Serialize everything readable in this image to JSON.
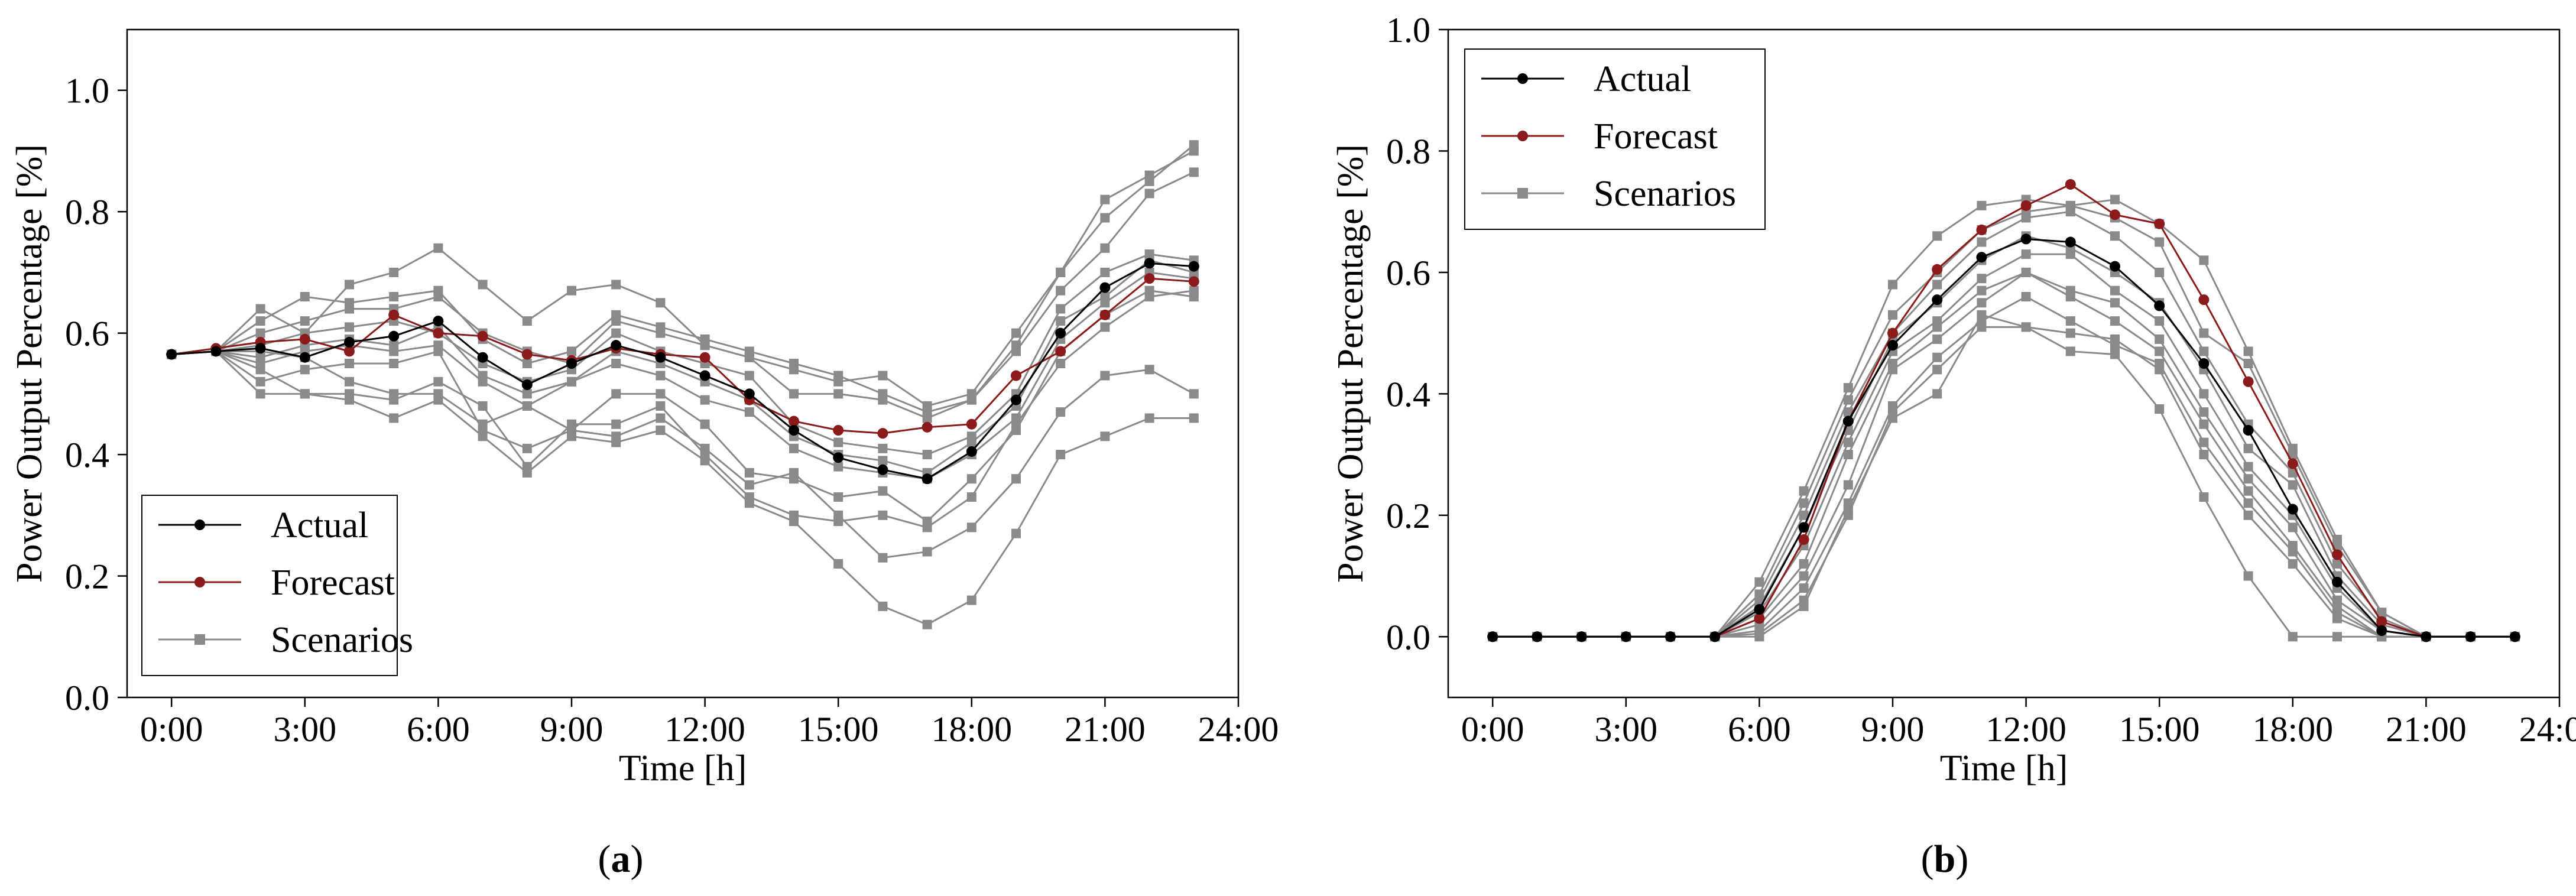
{
  "colors": {
    "actual": "#000000",
    "forecast": "#8b1a1a",
    "scenario": "#8a8a8a"
  },
  "chart_data": [
    {
      "id": "a",
      "type": "line",
      "caption": "(a)",
      "caption_letter": "a",
      "xlabel": "Time [h]",
      "ylabel": "Power Output Percentage [%]",
      "xlim": [
        -1,
        24
      ],
      "ylim": [
        0,
        1.1
      ],
      "xticks": [
        0,
        3,
        6,
        9,
        12,
        15,
        18,
        21,
        24
      ],
      "xtick_labels": [
        "0:00",
        "3:00",
        "6:00",
        "9:00",
        "12:00",
        "15:00",
        "18:00",
        "21:00",
        "24:00"
      ],
      "yticks": [
        0,
        0.2,
        0.4,
        0.6,
        0.8,
        1.0
      ],
      "ytick_labels": [
        "0.0",
        "0.2",
        "0.4",
        "0.6",
        "0.8",
        "1.0"
      ],
      "legend_position": "lower-left",
      "legend": [
        "Actual",
        "Forecast",
        "Scenarios"
      ],
      "x": [
        0,
        1,
        2,
        3,
        4,
        5,
        6,
        7,
        8,
        9,
        10,
        11,
        12,
        13,
        14,
        15,
        16,
        17,
        18,
        19,
        20,
        21,
        22,
        23
      ],
      "actual": [
        0.565,
        0.57,
        0.575,
        0.56,
        0.585,
        0.595,
        0.62,
        0.56,
        0.515,
        0.55,
        0.58,
        0.56,
        0.53,
        0.5,
        0.44,
        0.395,
        0.375,
        0.36,
        0.405,
        0.49,
        0.6,
        0.675,
        0.715,
        0.71
      ],
      "forecast": [
        0.565,
        0.575,
        0.585,
        0.59,
        0.57,
        0.63,
        0.6,
        0.595,
        0.565,
        0.555,
        0.575,
        0.565,
        0.56,
        0.49,
        0.455,
        0.44,
        0.435,
        0.445,
        0.45,
        0.53,
        0.57,
        0.63,
        0.69,
        0.685
      ],
      "scenarios": [
        [
          0.565,
          0.57,
          0.64,
          0.6,
          0.68,
          0.7,
          0.74,
          0.68,
          0.62,
          0.67,
          0.68,
          0.65,
          0.58,
          0.56,
          0.54,
          0.52,
          0.53,
          0.48,
          0.5,
          0.6,
          0.7,
          0.82,
          0.86,
          0.9
        ],
        [
          0.565,
          0.57,
          0.62,
          0.66,
          0.65,
          0.66,
          0.67,
          0.59,
          0.55,
          0.57,
          0.63,
          0.61,
          0.59,
          0.57,
          0.55,
          0.53,
          0.5,
          0.47,
          0.49,
          0.58,
          0.7,
          0.79,
          0.85,
          0.91
        ],
        [
          0.565,
          0.57,
          0.6,
          0.62,
          0.64,
          0.64,
          0.66,
          0.6,
          0.57,
          0.55,
          0.62,
          0.6,
          0.58,
          0.56,
          0.5,
          0.5,
          0.49,
          0.46,
          0.49,
          0.57,
          0.67,
          0.74,
          0.83,
          0.865
        ],
        [
          0.565,
          0.57,
          0.58,
          0.6,
          0.61,
          0.62,
          0.6,
          0.55,
          0.52,
          0.54,
          0.6,
          0.57,
          0.55,
          0.53,
          0.45,
          0.42,
          0.41,
          0.4,
          0.43,
          0.5,
          0.64,
          0.7,
          0.73,
          0.72
        ],
        [
          0.565,
          0.57,
          0.56,
          0.58,
          0.59,
          0.58,
          0.61,
          0.53,
          0.5,
          0.52,
          0.57,
          0.55,
          0.52,
          0.49,
          0.43,
          0.4,
          0.39,
          0.37,
          0.42,
          0.48,
          0.62,
          0.66,
          0.72,
          0.7
        ],
        [
          0.565,
          0.57,
          0.55,
          0.57,
          0.58,
          0.57,
          0.58,
          0.52,
          0.48,
          0.52,
          0.55,
          0.53,
          0.49,
          0.47,
          0.41,
          0.38,
          0.37,
          0.36,
          0.4,
          0.46,
          0.59,
          0.65,
          0.7,
          0.69
        ],
        [
          0.565,
          0.57,
          0.52,
          0.54,
          0.55,
          0.55,
          0.57,
          0.44,
          0.41,
          0.44,
          0.5,
          0.5,
          0.45,
          0.37,
          0.36,
          0.33,
          0.34,
          0.29,
          0.36,
          0.44,
          0.57,
          0.63,
          0.67,
          0.66
        ],
        [
          0.565,
          0.57,
          0.54,
          0.5,
          0.5,
          0.49,
          0.52,
          0.48,
          0.38,
          0.45,
          0.45,
          0.48,
          0.4,
          0.33,
          0.3,
          0.29,
          0.3,
          0.28,
          0.33,
          0.45,
          0.55,
          0.61,
          0.66,
          0.67
        ],
        [
          0.565,
          0.57,
          0.5,
          0.5,
          0.49,
          0.46,
          0.49,
          0.43,
          0.37,
          0.43,
          0.42,
          0.44,
          0.39,
          0.32,
          0.29,
          0.22,
          0.15,
          0.12,
          0.16,
          0.27,
          0.4,
          0.43,
          0.46,
          0.46
        ],
        [
          0.565,
          0.57,
          0.57,
          0.56,
          0.52,
          0.5,
          0.5,
          0.45,
          0.48,
          0.44,
          0.43,
          0.46,
          0.41,
          0.35,
          0.37,
          0.3,
          0.23,
          0.24,
          0.28,
          0.36,
          0.47,
          0.53,
          0.54,
          0.5
        ]
      ]
    },
    {
      "id": "b",
      "type": "line",
      "caption": "(b)",
      "caption_letter": "b",
      "xlabel": "Time [h]",
      "ylabel": "Power Output Percentage [%]",
      "xlim": [
        -1,
        24
      ],
      "ylim": [
        -0.1,
        1.0
      ],
      "xticks": [
        0,
        3,
        6,
        9,
        12,
        15,
        18,
        21,
        24
      ],
      "xtick_labels": [
        "0:00",
        "3:00",
        "6:00",
        "9:00",
        "12:00",
        "15:00",
        "18:00",
        "21:00",
        "24:00"
      ],
      "yticks": [
        0,
        0.2,
        0.4,
        0.6,
        0.8,
        1.0
      ],
      "ytick_labels": [
        "0.0",
        "0.2",
        "0.4",
        "0.6",
        "0.8",
        "1.0"
      ],
      "legend_position": "upper-left",
      "legend": [
        "Actual",
        "Forecast",
        "Scenarios"
      ],
      "x": [
        0,
        1,
        2,
        3,
        4,
        5,
        6,
        7,
        8,
        9,
        10,
        11,
        12,
        13,
        14,
        15,
        16,
        17,
        18,
        19,
        20,
        21,
        22,
        23
      ],
      "actual": [
        0,
        0,
        0,
        0,
        0,
        0,
        0.045,
        0.18,
        0.355,
        0.48,
        0.555,
        0.625,
        0.655,
        0.65,
        0.61,
        0.545,
        0.45,
        0.34,
        0.21,
        0.09,
        0.01,
        0,
        0,
        0
      ],
      "forecast": [
        0,
        0,
        0,
        0,
        0,
        0,
        0.03,
        0.16,
        0.355,
        0.5,
        0.605,
        0.67,
        0.71,
        0.745,
        0.695,
        0.68,
        0.555,
        0.42,
        0.285,
        0.135,
        0.025,
        0,
        0,
        0
      ],
      "scenarios": [
        [
          0,
          0,
          0,
          0,
          0,
          0,
          0.09,
          0.24,
          0.41,
          0.58,
          0.66,
          0.71,
          0.72,
          0.71,
          0.72,
          0.68,
          0.62,
          0.47,
          0.31,
          0.16,
          0.04,
          0,
          0,
          0
        ],
        [
          0,
          0,
          0,
          0,
          0,
          0,
          0.07,
          0.22,
          0.39,
          0.53,
          0.6,
          0.67,
          0.7,
          0.71,
          0.69,
          0.65,
          0.5,
          0.45,
          0.3,
          0.15,
          0.04,
          0,
          0,
          0
        ],
        [
          0,
          0,
          0,
          0,
          0,
          0,
          0.06,
          0.2,
          0.37,
          0.5,
          0.58,
          0.65,
          0.69,
          0.7,
          0.66,
          0.6,
          0.47,
          0.35,
          0.27,
          0.12,
          0.03,
          0,
          0,
          0
        ],
        [
          0,
          0,
          0,
          0,
          0,
          0,
          0.05,
          0.18,
          0.34,
          0.49,
          0.55,
          0.62,
          0.66,
          0.64,
          0.6,
          0.55,
          0.44,
          0.31,
          0.25,
          0.1,
          0.02,
          0,
          0,
          0
        ],
        [
          0,
          0,
          0,
          0,
          0,
          0,
          0.04,
          0.15,
          0.32,
          0.47,
          0.52,
          0.59,
          0.63,
          0.63,
          0.57,
          0.52,
          0.4,
          0.28,
          0.2,
          0.08,
          0.01,
          0,
          0,
          0
        ],
        [
          0,
          0,
          0,
          0,
          0,
          0,
          0.03,
          0.12,
          0.3,
          0.45,
          0.51,
          0.57,
          0.6,
          0.57,
          0.55,
          0.49,
          0.37,
          0.26,
          0.18,
          0.06,
          0.01,
          0,
          0,
          0
        ],
        [
          0,
          0,
          0,
          0,
          0,
          0,
          0.02,
          0.1,
          0.25,
          0.44,
          0.49,
          0.55,
          0.6,
          0.56,
          0.52,
          0.47,
          0.35,
          0.24,
          0.15,
          0.05,
          0,
          0,
          0,
          0
        ],
        [
          0,
          0,
          0,
          0,
          0,
          0,
          0.01,
          0.08,
          0.22,
          0.38,
          0.46,
          0.52,
          0.56,
          0.52,
          0.48,
          0.45,
          0.32,
          0.22,
          0.14,
          0.04,
          0,
          0,
          0,
          0
        ],
        [
          0,
          0,
          0,
          0,
          0,
          0,
          0.005,
          0.06,
          0.2,
          0.37,
          0.44,
          0.51,
          0.51,
          0.5,
          0.49,
          0.44,
          0.3,
          0.2,
          0.12,
          0.03,
          0,
          0,
          0,
          0
        ],
        [
          0,
          0,
          0,
          0,
          0,
          0,
          0,
          0.05,
          0.21,
          0.36,
          0.4,
          0.53,
          0.51,
          0.47,
          0.465,
          0.375,
          0.23,
          0.1,
          0,
          0,
          0,
          0,
          0,
          0
        ]
      ]
    }
  ]
}
